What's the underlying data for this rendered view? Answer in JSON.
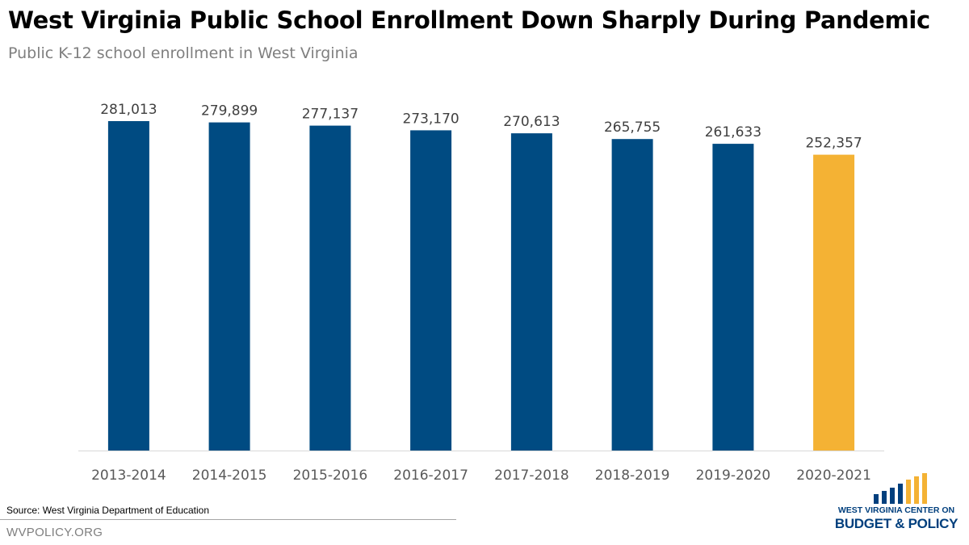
{
  "title": "West Virginia Public School Enrollment Down Sharply During Pandemic",
  "subtitle": "Public K-12 school enrollment in West Virginia",
  "source": "Source: West Virginia Department of Education",
  "website": "WVPOLICY.ORG",
  "logo": {
    "line1": "WEST VIRGINIA CENTER ON",
    "line2": "BUDGET & POLICY"
  },
  "colors": {
    "primary_bar": "#004b82",
    "highlight_bar": "#f4b234",
    "logo_blue": "#003f7d",
    "logo_gold": "#f4b234"
  },
  "chart_data": {
    "type": "bar",
    "categories": [
      "2013-2014",
      "2014-2015",
      "2015-2016",
      "2016-2017",
      "2017-2018",
      "2018-2019",
      "2019-2020",
      "2020-2021"
    ],
    "values": [
      281013,
      279899,
      277137,
      273170,
      270613,
      265755,
      261633,
      252357
    ],
    "data_labels": [
      "281,013",
      "279,899",
      "277,137",
      "273,170",
      "270,613",
      "265,755",
      "261,633",
      "252,357"
    ],
    "highlighted_category": "2020-2021",
    "ylim": [
      0,
      281013
    ],
    "grid": false,
    "legend": "none"
  }
}
